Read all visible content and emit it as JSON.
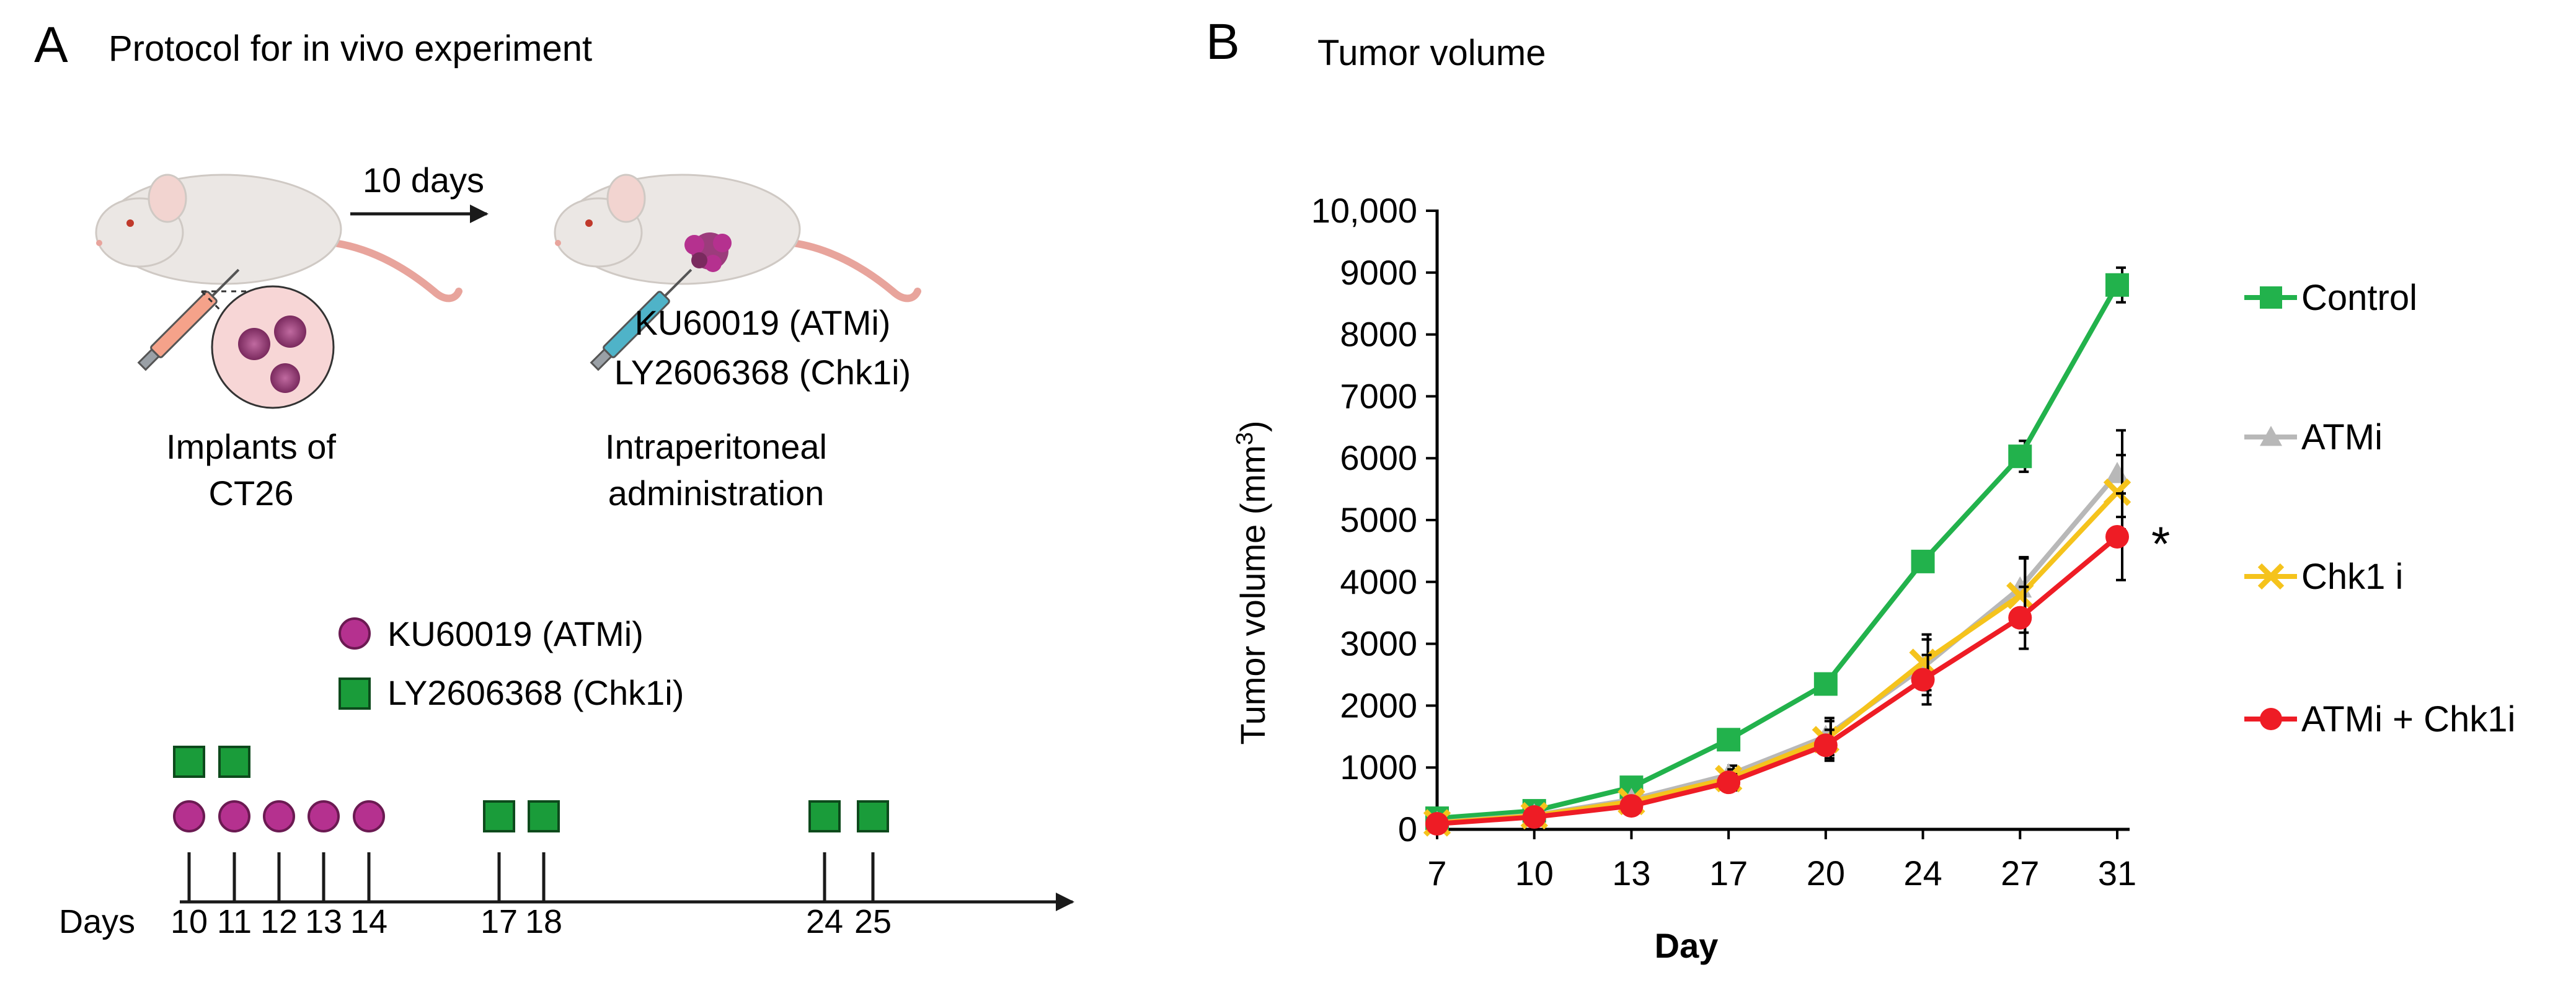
{
  "panel_a": {
    "letter": "A",
    "title": "Protocol for in vivo experiment",
    "arrow_label": "10 days",
    "drug_line1": "KU60019 (ATMi)",
    "drug_line2": "LY2606368 (Chk1i)",
    "implant_line1": "Implants of",
    "implant_line2": "CT26",
    "admin_line1": "Intraperitoneal",
    "admin_line2": "administration",
    "legend": [
      {
        "label": "KU60019 (ATMi)",
        "shape": "circle",
        "color": "#b5318f"
      },
      {
        "label": "LY2606368 (Chk1i)",
        "shape": "square",
        "color": "#1a9c3a"
      }
    ],
    "timeline": {
      "axis_label": "Days",
      "days": [
        "10",
        "11",
        "12",
        "13",
        "14",
        "17",
        "18",
        "24",
        "25"
      ],
      "atmi_days": [
        "10",
        "11",
        "12",
        "13",
        "14"
      ],
      "chk1i_days_upper": [
        "10",
        "11"
      ],
      "chk1i_days_lower": [
        "17",
        "18",
        "24",
        "25"
      ]
    }
  },
  "panel_b": {
    "letter": "B",
    "title": "Tumor volume"
  },
  "chart_data": {
    "type": "line",
    "title": "Tumor volume",
    "xlabel": "Day",
    "ylabel": "Tumor volume (mm³)",
    "ylabel_main": "Tumor volume (mm",
    "ylabel_sup": "3",
    "ylabel_close": ")",
    "categories": [
      "7",
      "10",
      "13",
      "17",
      "20",
      "24",
      "27",
      "31"
    ],
    "ylim": [
      0,
      10000
    ],
    "yticks": [
      0,
      1000,
      2000,
      3000,
      4000,
      5000,
      6000,
      7000,
      8000,
      9000,
      10000
    ],
    "ytick_labels": [
      "0",
      "1000",
      "2000",
      "3000",
      "4000",
      "5000",
      "6000",
      "7000",
      "8000",
      "9000",
      "10,000"
    ],
    "annotation": "*",
    "series": [
      {
        "name": "Control",
        "color": "#22b24c",
        "marker": "square",
        "values": [
          180,
          300,
          680,
          1450,
          2350,
          4330,
          6030,
          8800
        ],
        "errors": [
          40,
          50,
          80,
          110,
          120,
          150,
          250,
          280
        ]
      },
      {
        "name": "ATMi",
        "color": "#b8b8b8",
        "marker": "triangle",
        "values": [
          110,
          230,
          480,
          880,
          1500,
          2620,
          3900,
          5750
        ],
        "errors": [
          30,
          40,
          60,
          150,
          300,
          450,
          500,
          700
        ]
      },
      {
        "name": "Chk1 i",
        "color": "#f5c31c",
        "marker": "x",
        "values": [
          105,
          220,
          450,
          820,
          1450,
          2700,
          3780,
          5450
        ],
        "errors": [
          30,
          40,
          60,
          150,
          300,
          450,
          600,
          600
        ]
      },
      {
        "name": "ATMi + Chk1i",
        "color": "#ee1c25",
        "marker": "circle",
        "values": [
          90,
          200,
          380,
          760,
          1360,
          2420,
          3420,
          4730
        ],
        "errors": [
          30,
          40,
          60,
          130,
          250,
          400,
          500,
          700
        ]
      }
    ]
  }
}
